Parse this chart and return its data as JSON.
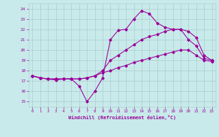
{
  "xlabel": "Windchill (Refroidissement éolien,°C)",
  "xlim": [
    -0.5,
    23.5
  ],
  "ylim": [
    14.5,
    24.5
  ],
  "yticks": [
    15,
    16,
    17,
    18,
    19,
    20,
    21,
    22,
    23,
    24
  ],
  "xticks": [
    0,
    1,
    2,
    3,
    4,
    5,
    6,
    7,
    8,
    9,
    10,
    11,
    12,
    13,
    14,
    15,
    16,
    17,
    18,
    19,
    20,
    21,
    22,
    23
  ],
  "bg_color": "#c8eaea",
  "grid_color": "#b0d0d0",
  "line_color": "#990099",
  "lines": [
    {
      "x": [
        0,
        1,
        2,
        3,
        4,
        5,
        6,
        7,
        8,
        9,
        10,
        11,
        12,
        13,
        14,
        15,
        16,
        17,
        18,
        19,
        20,
        21,
        22,
        23
      ],
      "y": [
        17.5,
        17.3,
        17.2,
        17.1,
        17.2,
        17.2,
        16.5,
        15.0,
        16.0,
        17.3,
        21.0,
        21.9,
        22.0,
        23.0,
        23.8,
        23.5,
        22.6,
        22.2,
        22.0,
        22.0,
        21.0,
        20.4,
        19.2,
        19.0
      ]
    },
    {
      "x": [
        0,
        1,
        2,
        3,
        4,
        5,
        6,
        7,
        8,
        9,
        10,
        11,
        12,
        13,
        14,
        15,
        16,
        17,
        18,
        19,
        20,
        21,
        22,
        23
      ],
      "y": [
        17.5,
        17.3,
        17.2,
        17.2,
        17.2,
        17.2,
        17.2,
        17.3,
        17.5,
        18.0,
        19.0,
        19.5,
        20.0,
        20.5,
        21.0,
        21.3,
        21.5,
        21.8,
        22.0,
        22.0,
        21.8,
        21.2,
        19.5,
        19.0
      ]
    },
    {
      "x": [
        0,
        1,
        2,
        3,
        4,
        5,
        6,
        7,
        8,
        9,
        10,
        11,
        12,
        13,
        14,
        15,
        16,
        17,
        18,
        19,
        20,
        21,
        22,
        23
      ],
      "y": [
        17.5,
        17.3,
        17.2,
        17.2,
        17.2,
        17.2,
        17.2,
        17.3,
        17.5,
        17.8,
        18.0,
        18.3,
        18.5,
        18.8,
        19.0,
        19.2,
        19.4,
        19.6,
        19.8,
        20.0,
        20.0,
        19.5,
        19.0,
        18.9
      ]
    }
  ]
}
